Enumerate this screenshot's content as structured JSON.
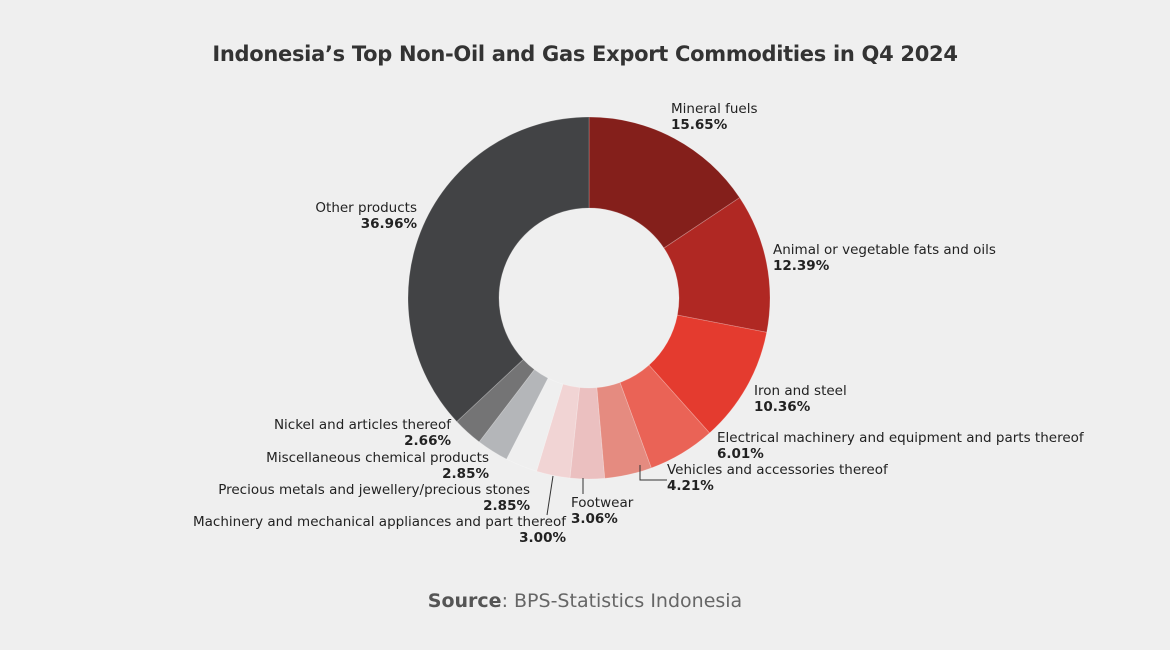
{
  "title": "Indonesia’s Top Non-Oil and Gas Export Commodities in Q4 2024",
  "source": {
    "label": "Source",
    "text": ": BPS-Statistics Indonesia"
  },
  "chart_data": {
    "type": "pie",
    "subtype": "donut",
    "title": "Indonesia’s Top Non-Oil and Gas Export Commodities in Q4 2024",
    "categories": [
      "Mineral fuels",
      "Animal or vegetable fats and oils",
      "Iron and steel",
      "Electrical machinery and equipment and parts thereof",
      "Vehicles and accessories thereof",
      "Footwear",
      "Machinery and mechanical appliances and part thereof",
      "Precious metals and jewellery/precious stones",
      "Miscellaneous chemical products",
      "Nickel and articles thereof",
      "Other products"
    ],
    "values": [
      15.65,
      12.39,
      10.36,
      6.01,
      4.21,
      3.06,
      3.0,
      2.85,
      2.85,
      2.66,
      36.96
    ],
    "labels": [
      "15.65%",
      "12.39%",
      "10.36%",
      "6.01%",
      "4.21%",
      "3.06%",
      "3.00%",
      "2.85%",
      "2.85%",
      "2.66%",
      "36.96%"
    ],
    "colors": [
      "#841f1b",
      "#b02823",
      "#e43b2f",
      "#ea6356",
      "#e58b80",
      "#ebc0c0",
      "#f1d4d4",
      "#efefef",
      "#b4b6b9",
      "#747475",
      "#424345"
    ],
    "unit": "%",
    "legend": "none (direct labels)",
    "source": "BPS-Statistics Indonesia"
  }
}
